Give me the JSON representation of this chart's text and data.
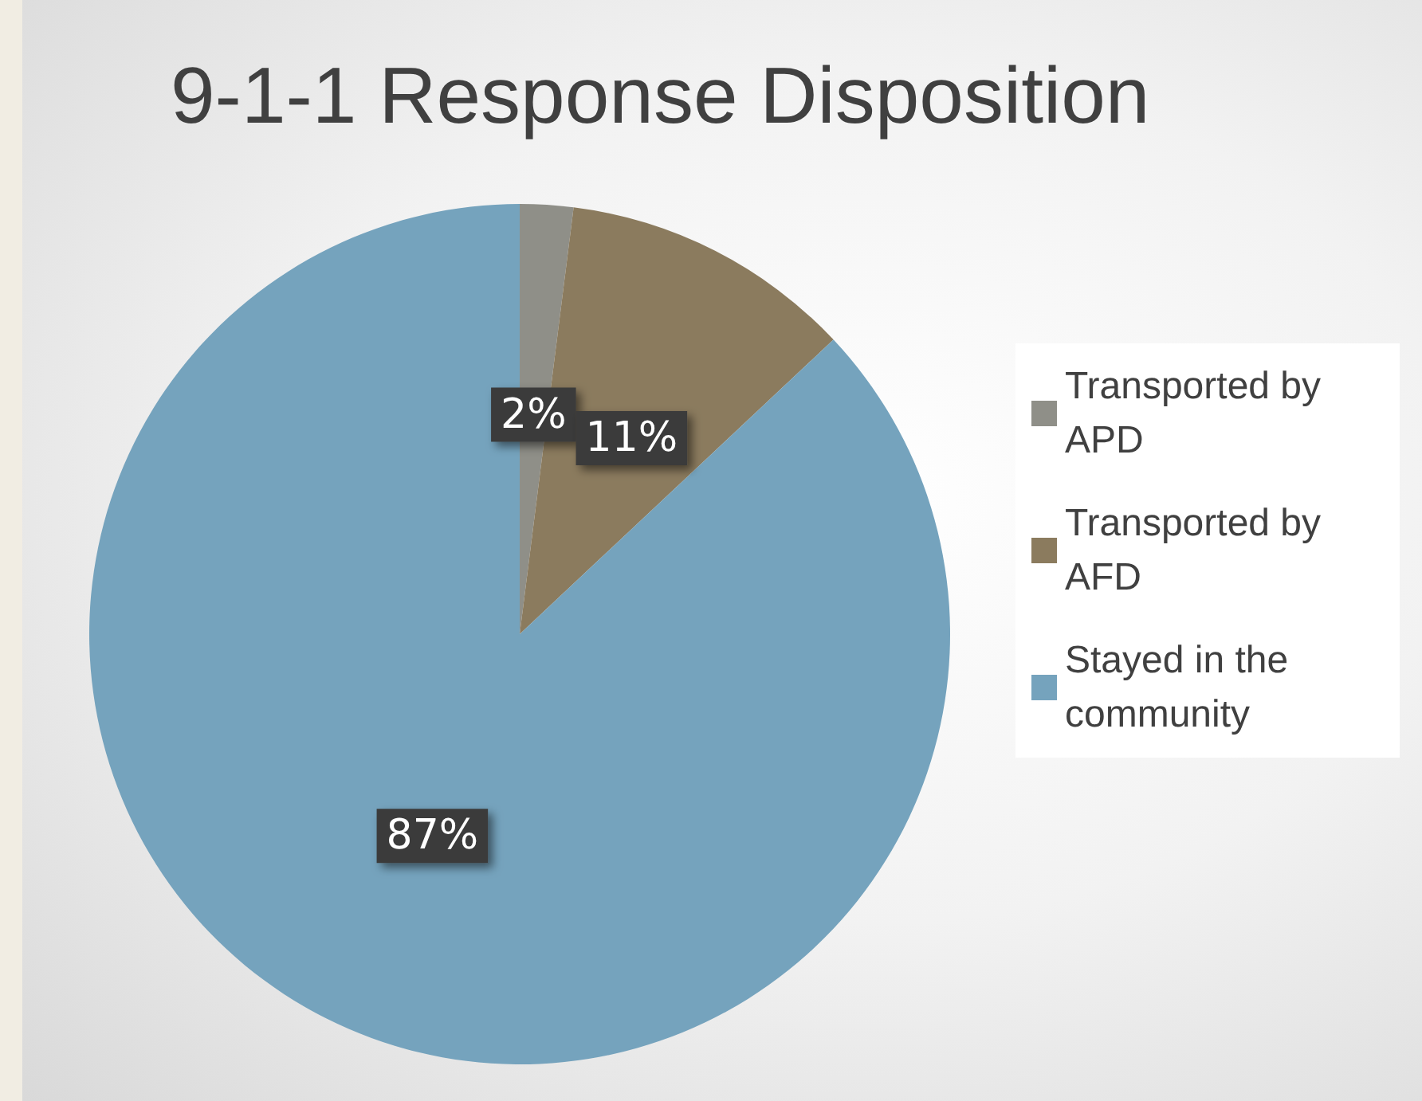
{
  "chart_data": {
    "type": "pie",
    "title": "9-1-1 Response Disposition",
    "categories": [
      "Transported by APD",
      "Transported by AFD",
      "Stayed in the community"
    ],
    "values": [
      2,
      11,
      87
    ],
    "colors": [
      "#8f8f88",
      "#8b7b5e",
      "#75a3bd"
    ],
    "value_labels": [
      "2%",
      "11%",
      "87%"
    ],
    "legend": "right"
  }
}
